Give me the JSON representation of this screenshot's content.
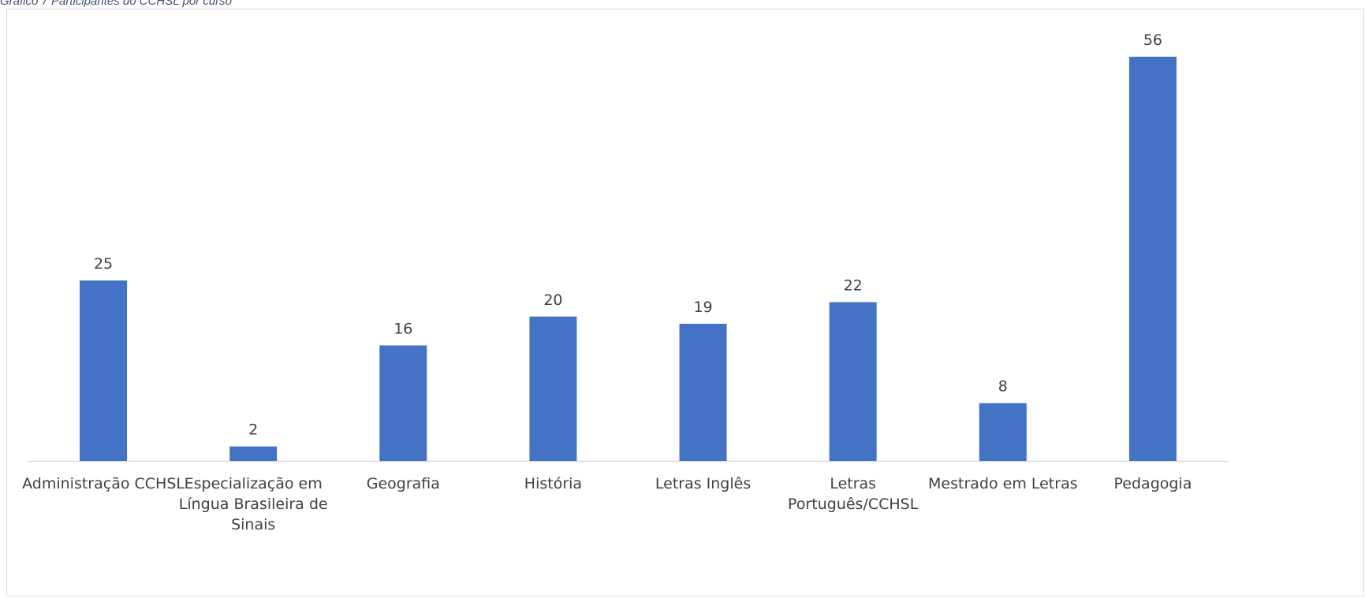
{
  "caption": "Gráfico 7 Participantes do CCHSL por curso",
  "colors": {
    "bar": "#4472c4",
    "axis": "#d9d9d9",
    "text": "#404040"
  },
  "chart_data": {
    "type": "bar",
    "title": "",
    "xlabel": "",
    "ylabel": "",
    "ylim": [
      0,
      56
    ],
    "grid": false,
    "legend": "none",
    "data_labels": true,
    "categories": [
      [
        "Administração CCHSL"
      ],
      [
        "Especialização em",
        "Língua Brasileira de",
        "Sinais"
      ],
      [
        "Geografia"
      ],
      [
        "História"
      ],
      [
        "Letras Inglês"
      ],
      [
        "Letras",
        "Português/CCHSL"
      ],
      [
        "Mestrado em Letras"
      ],
      [
        "Pedagogia"
      ]
    ],
    "values": [
      25,
      2,
      16,
      20,
      19,
      22,
      8,
      56
    ]
  }
}
